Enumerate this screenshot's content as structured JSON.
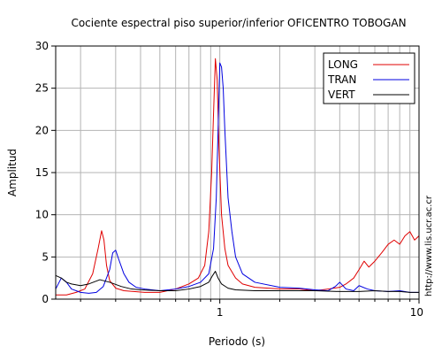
{
  "chart_data": {
    "type": "line",
    "title": "Cociente espectral piso superior/inferior OFICENTRO TOBOGAN",
    "xlabel": "Periodo (s)",
    "ylabel": "Amplitud",
    "xscale": "log",
    "xlim": [
      0.15,
      10
    ],
    "ylim": [
      0,
      30
    ],
    "grid": true,
    "legend_position": "top-right",
    "x_tick_labels": [
      {
        "value": 1,
        "label": "1"
      },
      {
        "value": 10,
        "label": "10"
      }
    ],
    "y_tick_labels": [
      {
        "value": 0,
        "label": "0"
      },
      {
        "value": 5,
        "label": "5"
      },
      {
        "value": 10,
        "label": "10"
      },
      {
        "value": 15,
        "label": "15"
      },
      {
        "value": 20,
        "label": "20"
      },
      {
        "value": 25,
        "label": "25"
      },
      {
        "value": 30,
        "label": "30"
      }
    ],
    "series": [
      {
        "name": "LONG",
        "color": "#e00000",
        "x": [
          0.15,
          0.17,
          0.19,
          0.21,
          0.23,
          0.245,
          0.255,
          0.262,
          0.27,
          0.28,
          0.3,
          0.33,
          0.37,
          0.42,
          0.5,
          0.6,
          0.7,
          0.78,
          0.84,
          0.88,
          0.91,
          0.93,
          0.95,
          0.97,
          0.99,
          1.02,
          1.06,
          1.1,
          1.2,
          1.3,
          1.5,
          2.0,
          2.5,
          3.0,
          3.5,
          4.0,
          4.3,
          4.7,
          5.0,
          5.3,
          5.6,
          6.0,
          6.5,
          7.0,
          7.5,
          8.0,
          8.5,
          9.0,
          9.5,
          10.0
        ],
        "y": [
          0.5,
          0.5,
          0.8,
          1.2,
          3.0,
          6.0,
          8.1,
          7.0,
          4.0,
          2.2,
          1.3,
          1.0,
          0.9,
          0.8,
          0.8,
          1.2,
          1.8,
          2.5,
          4.0,
          8.0,
          15.0,
          22.0,
          28.5,
          26.0,
          18.0,
          10.0,
          6.0,
          4.0,
          2.5,
          1.8,
          1.4,
          1.2,
          1.2,
          1.0,
          1.2,
          1.4,
          1.8,
          2.5,
          3.5,
          4.5,
          3.8,
          4.5,
          5.5,
          6.5,
          7.0,
          6.5,
          7.5,
          8.0,
          7.0,
          7.5
        ]
      },
      {
        "name": "TRAN",
        "color": "#0000e0",
        "x": [
          0.15,
          0.16,
          0.17,
          0.18,
          0.2,
          0.22,
          0.24,
          0.26,
          0.28,
          0.29,
          0.3,
          0.31,
          0.33,
          0.35,
          0.38,
          0.42,
          0.5,
          0.6,
          0.7,
          0.8,
          0.88,
          0.93,
          0.96,
          0.98,
          1.0,
          1.02,
          1.04,
          1.06,
          1.1,
          1.15,
          1.2,
          1.3,
          1.5,
          2.0,
          2.5,
          3.0,
          3.5,
          3.8,
          4.0,
          4.3,
          4.7,
          5.0,
          5.5,
          6.0,
          7.0,
          8.0,
          9.0,
          10.0
        ],
        "y": [
          1.2,
          2.5,
          2.0,
          1.2,
          0.8,
          0.7,
          0.8,
          1.5,
          3.5,
          5.5,
          5.8,
          4.8,
          3.0,
          2.0,
          1.4,
          1.2,
          1.0,
          1.2,
          1.5,
          2.0,
          3.0,
          6.0,
          12.0,
          20.0,
          28.0,
          27.5,
          25.0,
          20.0,
          12.0,
          8.0,
          5.0,
          3.0,
          2.0,
          1.4,
          1.3,
          1.1,
          1.0,
          1.5,
          2.0,
          1.2,
          1.0,
          1.6,
          1.2,
          1.0,
          0.9,
          1.0,
          0.8,
          0.8
        ]
      },
      {
        "name": "VERT",
        "color": "#000000",
        "x": [
          0.15,
          0.16,
          0.17,
          0.18,
          0.2,
          0.22,
          0.25,
          0.28,
          0.32,
          0.36,
          0.4,
          0.5,
          0.6,
          0.7,
          0.8,
          0.88,
          0.92,
          0.95,
          0.98,
          1.02,
          1.1,
          1.2,
          1.5,
          2.0,
          2.5,
          3.0,
          4.0,
          5.0,
          6.0,
          7.0,
          8.0,
          9.0,
          10.0
        ],
        "y": [
          2.8,
          2.5,
          2.0,
          1.8,
          1.6,
          1.8,
          2.3,
          2.0,
          1.5,
          1.2,
          1.1,
          1.0,
          1.0,
          1.2,
          1.5,
          2.0,
          2.8,
          3.3,
          2.5,
          1.8,
          1.3,
          1.1,
          1.0,
          1.0,
          1.0,
          1.0,
          0.9,
          0.9,
          1.0,
          0.9,
          0.9,
          0.8,
          0.8
        ]
      }
    ]
  },
  "url_text": "http://www.lis.ucr.ac.cr"
}
